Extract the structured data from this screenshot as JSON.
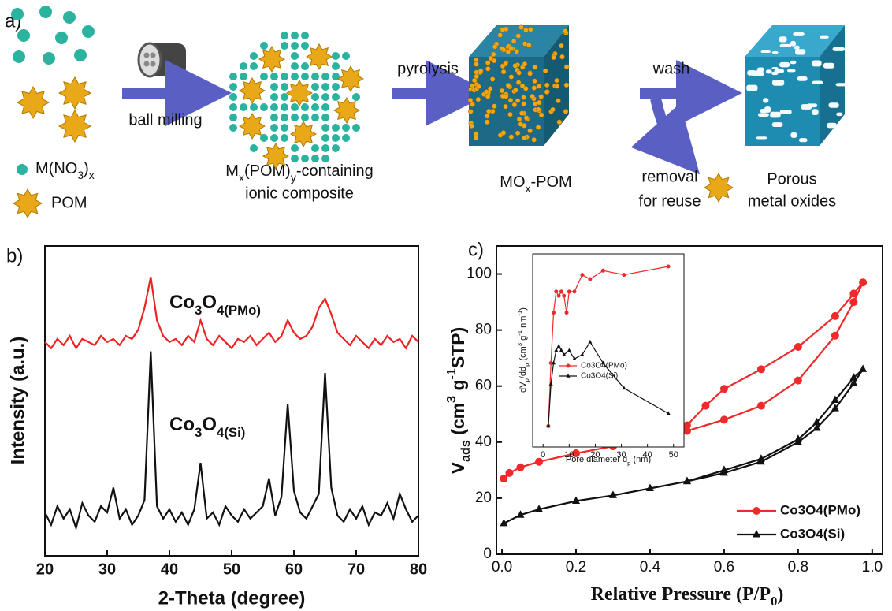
{
  "panel_a": {
    "label": "a)",
    "steps": [
      "ball milling",
      "pyrolysis",
      "wash"
    ],
    "legend": {
      "ion": [
        "M(NO",
        "3",
        ")",
        "x"
      ],
      "pom": "POM"
    },
    "composite": [
      "M",
      "x",
      "(POM)",
      "y",
      "-containing",
      "ionic composite"
    ],
    "oxide": [
      "MO",
      "x",
      "-POM"
    ],
    "removal": [
      "removal",
      "for reuse"
    ],
    "product": [
      "Porous",
      "metal oxides"
    ]
  },
  "chart_data": [
    {
      "type": "line",
      "panel": "b)",
      "xlabel": "2-Theta (degree)",
      "ylabel": "Intensity (a.u.)",
      "annotations": [
        [
          "Co",
          "3",
          "O",
          "4(PMo)"
        ],
        [
          "Co",
          "3",
          "O",
          "4(Si)"
        ]
      ],
      "x": [
        20,
        21,
        22,
        23,
        24,
        25,
        26,
        27,
        28,
        29,
        30,
        31,
        32,
        33,
        34,
        35,
        36,
        37,
        38,
        39,
        40,
        41,
        42,
        43,
        44,
        45,
        46,
        47,
        48,
        49,
        50,
        51,
        52,
        53,
        54,
        55,
        56,
        57,
        58,
        59,
        60,
        61,
        62,
        63,
        64,
        65,
        66,
        67,
        68,
        69,
        70,
        71,
        72,
        73,
        74,
        75,
        76,
        77,
        78,
        79,
        80
      ],
      "series": [
        {
          "name": "Co3O4(PMo)",
          "color": "#ee2222",
          "values": [
            69,
            67,
            70,
            68,
            71,
            67,
            70,
            69,
            68,
            71,
            69,
            70,
            68,
            71,
            70,
            73,
            80,
            90,
            76,
            71,
            69,
            70,
            68,
            71,
            69,
            76,
            70,
            68,
            71,
            69,
            67,
            70,
            69,
            71,
            68,
            70,
            72,
            69,
            71,
            76,
            72,
            70,
            71,
            74,
            80,
            83,
            78,
            72,
            70,
            68,
            71,
            69,
            67,
            70,
            68,
            71,
            69,
            70,
            67,
            71,
            69
          ]
        },
        {
          "name": "Co3O4(Si)",
          "color": "#111111",
          "values": [
            14,
            10,
            16,
            12,
            15,
            9,
            17,
            13,
            11,
            16,
            14,
            22,
            12,
            15,
            10,
            13,
            18,
            66,
            16,
            12,
            15,
            11,
            14,
            10,
            15,
            30,
            12,
            14,
            10,
            16,
            13,
            11,
            15,
            12,
            14,
            16,
            25,
            13,
            19,
            49,
            21,
            14,
            12,
            16,
            20,
            59,
            22,
            13,
            11,
            15,
            12,
            16,
            10,
            14,
            13,
            17,
            12,
            20,
            15,
            11,
            13
          ]
        }
      ],
      "xlim": [
        20,
        80
      ],
      "ylim": [
        0,
        100
      ],
      "xticks": [
        20,
        30,
        40,
        50,
        60,
        70,
        80
      ]
    },
    {
      "type": "line",
      "panel": "c)",
      "xlabel": [
        "Relative Pressure (P/P",
        "0",
        ")"
      ],
      "ylabel": [
        "V",
        "ads",
        " (cm",
        "3",
        " g",
        "-1",
        "STP)"
      ],
      "series": [
        {
          "name": "Co3O4(PMo)",
          "color": "#ee2a2a",
          "marker": "circle",
          "x": [
            0.005,
            0.02,
            0.05,
            0.1,
            0.2,
            0.3,
            0.4,
            0.5,
            0.6,
            0.7,
            0.8,
            0.9,
            0.95,
            0.975,
            0.95,
            0.9,
            0.8,
            0.7,
            0.6,
            0.55,
            0.5,
            0.4
          ],
          "values": [
            27,
            29,
            31,
            33,
            36,
            38.5,
            41,
            44,
            48,
            53,
            62,
            78,
            90,
            97,
            93,
            85,
            74,
            66,
            59,
            53,
            46,
            42
          ]
        },
        {
          "name": "Co3O4(Si)",
          "color": "#111111",
          "marker": "triangle",
          "x": [
            0.005,
            0.05,
            0.1,
            0.2,
            0.3,
            0.4,
            0.5,
            0.6,
            0.7,
            0.8,
            0.85,
            0.9,
            0.95,
            0.975,
            0.95,
            0.9,
            0.85,
            0.8,
            0.7,
            0.6,
            0.5
          ],
          "values": [
            11,
            14,
            16,
            19,
            21,
            23.5,
            26,
            29,
            33,
            40,
            45,
            52,
            61,
            66,
            63,
            55,
            47,
            41,
            34,
            30,
            26
          ]
        }
      ],
      "xlim": [
        -0.015,
        1.028
      ],
      "ylim": [
        0,
        110
      ],
      "xticks": [
        {
          "value": 0,
          "label": "0.0"
        },
        0.2,
        0.4,
        0.6,
        0.8,
        {
          "value": 1,
          "label": "1.0"
        }
      ],
      "yticks": [
        0,
        20,
        40,
        60,
        80,
        100
      ],
      "legend": "lower right"
    },
    {
      "type": "line",
      "inset": true,
      "xlabel": [
        "Pore diameter d",
        "p",
        " (nm)"
      ],
      "ylabel": [
        "dV",
        "p",
        "/dd",
        "p",
        " (cm",
        "3",
        " g",
        "-1",
        " nm",
        "-1",
        ")"
      ],
      "series": [
        {
          "name": "Co3O4(PMo)",
          "color": "#ee2a2a",
          "marker": "circle",
          "x": [
            2,
            3,
            4,
            5,
            6,
            7,
            8,
            9,
            10,
            12,
            15,
            18,
            23,
            31,
            48
          ],
          "values": [
            65,
            80,
            92,
            97,
            96,
            97,
            96,
            92,
            97,
            97,
            101,
            100,
            102,
            101,
            103
          ]
        },
        {
          "name": "Co3O4(Si)",
          "color": "#111111",
          "marker": "triangle",
          "x": [
            2,
            3,
            4,
            5,
            6,
            7,
            8,
            10,
            12,
            15,
            18,
            23,
            31,
            48
          ],
          "values": [
            65,
            75,
            80,
            83,
            84,
            83,
            82,
            83,
            81,
            82,
            85,
            80,
            74,
            68
          ]
        }
      ],
      "xlim": [
        -4,
        54
      ],
      "ylim": [
        60,
        106
      ],
      "xticks": [
        0,
        10,
        20,
        30,
        40,
        50
      ],
      "legend": "center left"
    }
  ]
}
